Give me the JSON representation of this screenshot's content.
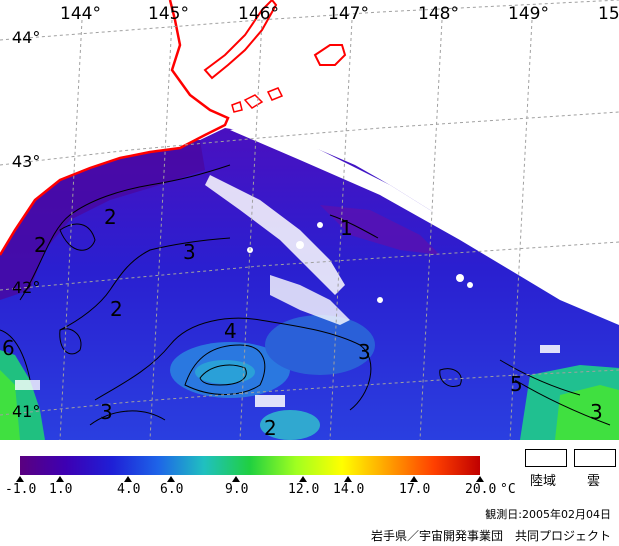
{
  "map": {
    "longitude_labels": [
      "144°",
      "145°",
      "146°",
      "147°",
      "148°",
      "149°",
      "15"
    ],
    "latitude_labels": [
      "44°",
      "43°",
      "42°",
      "41°"
    ],
    "contour_labels": [
      "2",
      "2",
      "2",
      "3",
      "1",
      "4",
      "3",
      "5",
      "6",
      "3",
      "2",
      "3"
    ],
    "colors": {
      "coast": "#ff0000",
      "land": "#ffffff",
      "cloud": "#ffffff",
      "grid": "#a0a0a0"
    }
  },
  "legend": {
    "ticks": [
      "-1.0",
      "1.0",
      "4.0",
      "6.0",
      "9.0",
      "12.0",
      "14.0",
      "17.0",
      "20.0"
    ],
    "unit": "°C",
    "land_label": "陸域",
    "cloud_label": "雲",
    "colors": [
      "#5a007f",
      "#3d00b3",
      "#1f1fd6",
      "#1e64e8",
      "#20c0c0",
      "#20d040",
      "#a0ff20",
      "#ffff00",
      "#ffa000",
      "#ff4000",
      "#c00000"
    ]
  },
  "footer": {
    "observation_date": "観測日:2005年02月04日",
    "credit": "岩手県／宇宙開発事業団　共同プロジェクト"
  }
}
